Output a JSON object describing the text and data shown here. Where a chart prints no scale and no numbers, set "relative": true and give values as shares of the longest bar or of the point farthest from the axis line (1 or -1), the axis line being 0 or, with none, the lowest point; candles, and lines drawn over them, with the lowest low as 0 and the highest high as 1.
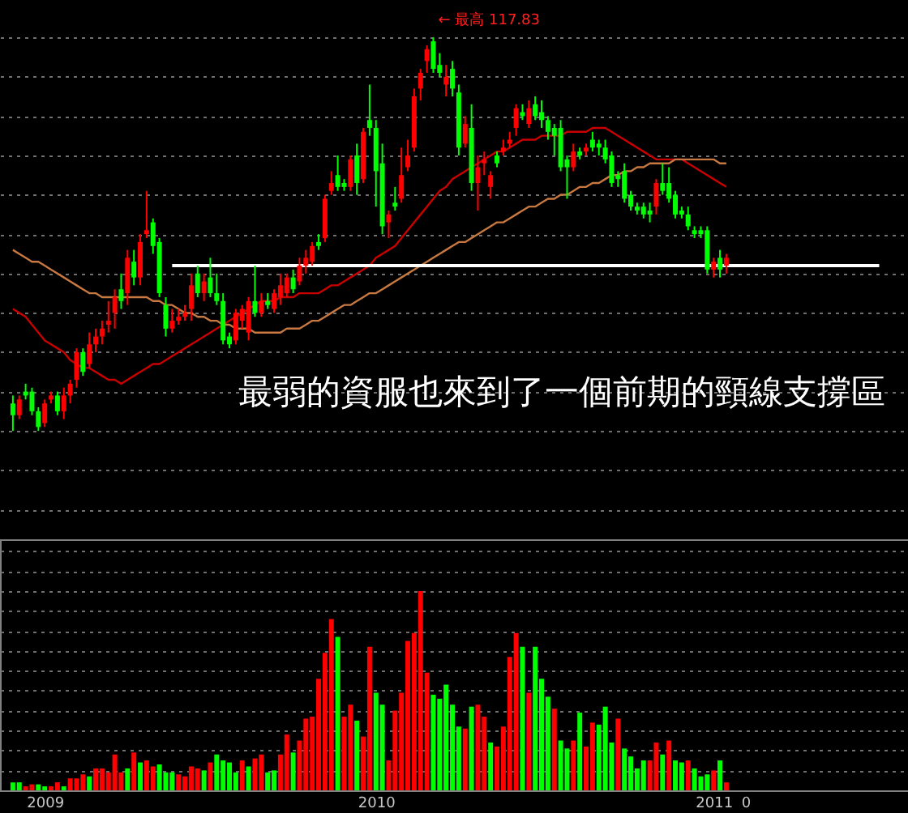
{
  "chart_data": [
    {
      "type": "candlestick",
      "relative": true,
      "grid": "y",
      "tick_labels": false,
      "categories": [
        null,
        null,
        null,
        null,
        null,
        "2009",
        null,
        null,
        null,
        null,
        null,
        null,
        null,
        null,
        null,
        null,
        null,
        null,
        null,
        null,
        null,
        null,
        null,
        null,
        null,
        null,
        null,
        null,
        null,
        null,
        null,
        null,
        null,
        null,
        null,
        null,
        null,
        null,
        null,
        null,
        null,
        null,
        null,
        null,
        null,
        null,
        null,
        null,
        null,
        null,
        null,
        null,
        null,
        null,
        null,
        null,
        null,
        "2010",
        null,
        null,
        null,
        null,
        null,
        null,
        null,
        null,
        null,
        null,
        null,
        null,
        null,
        null,
        null,
        null,
        null,
        null,
        null,
        null,
        null,
        null,
        null,
        null,
        null,
        null,
        null,
        null,
        null,
        null,
        null,
        null,
        null,
        null,
        null,
        null,
        null,
        null,
        null,
        null,
        null,
        null,
        null,
        null,
        null,
        null,
        null,
        null,
        null,
        null,
        null,
        null,
        "2011",
        null,
        null,
        null,
        null,
        "0",
        null,
        null,
        null,
        null,
        null,
        null,
        null,
        null,
        null,
        null,
        null,
        null,
        null,
        null,
        null,
        null,
        null,
        null,
        null,
        null,
        null
      ],
      "ohlc": [
        [
          0.07,
          0.09,
          0,
          0.04
        ],
        [
          0.04,
          0.09,
          0.03,
          0.08
        ],
        [
          0.1,
          0.12,
          0.08,
          0.09
        ],
        [
          0.1,
          0.11,
          0.04,
          0.05
        ],
        [
          0.05,
          0.06,
          0,
          0.01
        ],
        [
          0.02,
          0.08,
          0.01,
          0.07
        ],
        [
          0.08,
          0.1,
          0.07,
          0.09
        ],
        [
          0.09,
          0.1,
          0.04,
          0.05
        ],
        [
          0.05,
          0.11,
          0.03,
          0.09
        ],
        [
          0.09,
          0.13,
          0.07,
          0.12
        ],
        [
          0.13,
          0.21,
          0.11,
          0.2
        ],
        [
          0.2,
          0.21,
          0.14,
          0.15
        ],
        [
          0.17,
          0.25,
          0.16,
          0.22
        ],
        [
          0.22,
          0.26,
          0.2,
          0.24
        ],
        [
          0.24,
          0.28,
          0.22,
          0.26
        ],
        [
          0.27,
          0.33,
          0.25,
          0.28
        ],
        [
          0.3,
          0.36,
          0.26,
          0.34
        ],
        [
          0.36,
          0.4,
          0.31,
          0.33
        ],
        [
          0.35,
          0.46,
          0.32,
          0.44
        ],
        [
          0.43,
          0.46,
          0.37,
          0.39
        ],
        [
          0.39,
          0.5,
          0.37,
          0.48
        ],
        [
          0.5,
          0.61,
          0.49,
          0.51
        ],
        [
          0.53,
          0.54,
          0.45,
          0.47
        ],
        [
          0.48,
          0.49,
          0.34,
          0.35
        ],
        [
          0.32,
          0.34,
          0.24,
          0.26
        ],
        [
          0.26,
          0.31,
          0.25,
          0.28
        ],
        [
          0.28,
          0.31,
          0.27,
          0.29
        ],
        [
          0.29,
          0.32,
          0.28,
          0.3
        ],
        [
          0.31,
          0.4,
          0.28,
          0.37
        ],
        [
          0.4,
          0.42,
          0.34,
          0.35
        ],
        [
          0.35,
          0.4,
          0.33,
          0.38
        ],
        [
          0.39,
          0.44,
          0.34,
          0.35
        ],
        [
          0.35,
          0.4,
          0.32,
          0.33
        ],
        [
          0.33,
          0.35,
          0.22,
          0.23
        ],
        [
          0.24,
          0.25,
          0.21,
          0.22
        ],
        [
          0.23,
          0.31,
          0.22,
          0.3
        ],
        [
          0.28,
          0.32,
          0.26,
          0.31
        ],
        [
          0.25,
          0.34,
          0.23,
          0.33
        ],
        [
          0.33,
          0.42,
          0.29,
          0.3
        ],
        [
          0.3,
          0.35,
          0.29,
          0.33
        ],
        [
          0.33,
          0.35,
          0.31,
          0.32
        ],
        [
          0.31,
          0.36,
          0.3,
          0.35
        ],
        [
          0.34,
          0.4,
          0.32,
          0.37
        ],
        [
          0.35,
          0.4,
          0.34,
          0.39
        ],
        [
          0.39,
          0.41,
          0.35,
          0.36
        ],
        [
          0.38,
          0.44,
          0.37,
          0.42
        ],
        [
          0.42,
          0.46,
          0.4,
          0.44
        ],
        [
          0.43,
          0.48,
          0.42,
          0.47
        ],
        [
          0.48,
          0.5,
          0.46,
          0.47
        ],
        [
          0.49,
          0.6,
          0.48,
          0.59
        ],
        [
          0.61,
          0.66,
          0.6,
          0.63
        ],
        [
          0.65,
          0.7,
          0.61,
          0.62
        ],
        [
          0.63,
          0.64,
          0.61,
          0.62
        ],
        [
          0.62,
          0.7,
          0.61,
          0.69
        ],
        [
          0.7,
          0.73,
          0.6,
          0.63
        ],
        [
          0.64,
          0.77,
          0.63,
          0.76
        ],
        [
          0.79,
          0.88,
          0.75,
          0.77
        ],
        [
          0.77,
          0.79,
          0.57,
          0.66
        ],
        [
          0.68,
          0.73,
          0.5,
          0.52
        ],
        [
          0.53,
          0.56,
          0.49,
          0.55
        ],
        [
          0.58,
          0.62,
          0.56,
          0.57
        ],
        [
          0.59,
          0.72,
          0.58,
          0.65
        ],
        [
          0.67,
          0.74,
          0.66,
          0.7
        ],
        [
          0.72,
          0.87,
          0.71,
          0.85
        ],
        [
          0.87,
          0.92,
          0.84,
          0.91
        ],
        [
          0.94,
          0.98,
          0.91,
          0.97
        ],
        [
          0.99,
          1,
          0.91,
          0.92
        ],
        [
          0.93,
          0.96,
          0.9,
          0.91
        ],
        [
          0.88,
          0.93,
          0.85,
          0.9
        ],
        [
          0.92,
          0.94,
          0.85,
          0.87
        ],
        [
          0.86,
          0.88,
          0.7,
          0.72
        ],
        [
          0.73,
          0.8,
          0.72,
          0.78
        ],
        [
          0.77,
          0.83,
          0.61,
          0.63
        ],
        [
          0.63,
          0.7,
          0.56,
          0.67
        ],
        [
          0.68,
          0.71,
          0.65,
          0.69
        ],
        [
          0.62,
          0.66,
          0.59,
          0.65
        ],
        [
          0.7,
          0.71,
          0.67,
          0.68
        ],
        [
          0.71,
          0.74,
          0.7,
          0.72
        ],
        [
          0.73,
          0.76,
          0.72,
          0.74
        ],
        [
          0.77,
          0.83,
          0.75,
          0.82
        ],
        [
          0.81,
          0.83,
          0.79,
          0.8
        ],
        [
          0.78,
          0.84,
          0.77,
          0.82
        ],
        [
          0.83,
          0.85,
          0.79,
          0.8
        ],
        [
          0.81,
          0.84,
          0.77,
          0.79
        ],
        [
          0.79,
          0.8,
          0.74,
          0.76
        ],
        [
          0.77,
          0.78,
          0.7,
          0.75
        ],
        [
          0.77,
          0.79,
          0.66,
          0.67
        ],
        [
          0.69,
          0.7,
          0.59,
          0.67
        ],
        [
          0.67,
          0.73,
          0.66,
          0.71
        ],
        [
          0.71,
          0.72,
          0.69,
          0.7
        ],
        [
          0.71,
          0.73,
          0.7,
          0.72
        ],
        [
          0.74,
          0.76,
          0.71,
          0.72
        ],
        [
          0.73,
          0.74,
          0.7,
          0.72
        ],
        [
          0.72,
          0.74,
          0.68,
          0.69
        ],
        [
          0.7,
          0.71,
          0.62,
          0.63
        ],
        [
          0.65,
          0.66,
          0.62,
          0.64
        ],
        [
          0.66,
          0.68,
          0.58,
          0.59
        ],
        [
          0.6,
          0.61,
          0.56,
          0.57
        ],
        [
          0.57,
          0.58,
          0.55,
          0.56
        ],
        [
          0.57,
          0.58,
          0.54,
          0.55
        ],
        [
          0.56,
          0.58,
          0.53,
          0.55
        ],
        [
          0.57,
          0.64,
          0.55,
          0.63
        ],
        [
          0.63,
          0.68,
          0.6,
          0.61
        ],
        [
          0.63,
          0.67,
          0.58,
          0.59
        ],
        [
          0.6,
          0.61,
          0.54,
          0.55
        ],
        [
          0.56,
          0.57,
          0.54,
          0.55
        ],
        [
          0.55,
          0.57,
          0.51,
          0.52
        ],
        [
          0.51,
          0.52,
          0.49,
          0.5
        ],
        [
          0.51,
          0.52,
          0.49,
          0.5
        ],
        [
          0.51,
          0.52,
          0.4,
          0.41
        ],
        [
          0.41,
          0.44,
          0.39,
          0.43
        ],
        [
          0.44,
          0.46,
          0.39,
          0.41
        ],
        [
          0.42,
          0.45,
          0.4,
          0.44
        ],
        null,
        null,
        null,
        null,
        null,
        null,
        null,
        null,
        null,
        null,
        null,
        null,
        null,
        null,
        null,
        null,
        null,
        null,
        null,
        null,
        null,
        null,
        null,
        null
      ],
      "colors": [
        "#00ff00",
        "#ff0000",
        "#00ff00",
        "#00ff00",
        "#00ff00",
        "#ff0000",
        "#ff0000",
        "#00ff00",
        "#ff0000",
        "#ff0000",
        "#ff0000",
        "#00ff00",
        "#ff0000",
        "#ff0000",
        "#ff0000",
        "#ff0000",
        "#ff0000",
        "#00ff00",
        "#ff0000",
        "#00ff00",
        "#ff0000",
        "#ff0000",
        "#00ff00",
        "#00ff00",
        "#00ff00",
        "#ff0000",
        "#ff0000",
        "#ff0000",
        "#ff0000",
        "#00ff00",
        "#ff0000",
        "#00ff00",
        "#00ff00",
        "#00ff00",
        "#00ff00",
        "#ff0000",
        "#ff0000",
        "#ff0000",
        "#00ff00",
        "#ff0000",
        "#00ff00",
        "#ff0000",
        "#ff0000",
        "#ff0000",
        "#00ff00",
        "#ff0000",
        "#ff0000",
        "#ff0000",
        "#00ff00",
        "#ff0000",
        "#ff0000",
        "#00ff00",
        "#00ff00",
        "#ff0000",
        "#00ff00",
        "#ff0000",
        "#00ff00",
        "#00ff00",
        "#00ff00",
        "#ff0000",
        "#00ff00",
        "#ff0000",
        "#ff0000",
        "#ff0000",
        "#ff0000",
        "#ff0000",
        "#00ff00",
        "#00ff00",
        "#ff0000",
        "#00ff00",
        "#00ff00",
        "#ff0000",
        "#00ff00",
        "#ff0000",
        "#ff0000",
        "#ff0000",
        "#00ff00",
        "#ff0000",
        "#ff0000",
        "#ff0000",
        "#00ff00",
        "#ff0000",
        "#00ff00",
        "#00ff00",
        "#00ff00",
        "#00ff00",
        "#00ff00",
        "#00ff00",
        "#ff0000",
        "#00ff00",
        "#ff0000",
        "#00ff00",
        "#00ff00",
        "#00ff00",
        "#00ff00",
        "#00ff00",
        "#00ff00",
        "#00ff00",
        "#00ff00",
        "#00ff00",
        "#00ff00",
        "#ff0000",
        "#00ff00",
        "#00ff00",
        "#00ff00",
        "#00ff00",
        "#00ff00",
        "#00ff00",
        "#00ff00",
        "#00ff00",
        "#ff0000",
        "#00ff00",
        "#ff0000",
        null,
        null,
        null,
        null,
        null,
        null,
        null,
        null,
        null,
        null,
        null,
        null,
        null,
        null,
        null,
        null,
        null,
        null,
        null,
        null,
        null,
        null,
        null,
        null
      ],
      "series": [
        {
          "type": "line",
          "color": "#c80000",
          "values": [
            0.31,
            0.3,
            0.29,
            0.27,
            0.25,
            0.23,
            0.22,
            0.21,
            0.2,
            0.18,
            0.17,
            0.16,
            0.16,
            0.15,
            0.14,
            0.13,
            0.13,
            0.12,
            0.13,
            0.14,
            0.15,
            0.16,
            0.17,
            0.17,
            0.18,
            0.19,
            0.2,
            0.21,
            0.22,
            0.23,
            0.24,
            0.25,
            0.26,
            0.27,
            0.28,
            0.29,
            0.3,
            0.31,
            0.32,
            0.33,
            0.33,
            0.33,
            0.34,
            0.34,
            0.34,
            0.35,
            0.35,
            0.35,
            0.35,
            0.36,
            0.37,
            0.37,
            0.38,
            0.39,
            0.4,
            0.41,
            0.42,
            0.44,
            0.45,
            0.46,
            0.47,
            0.49,
            0.51,
            0.53,
            0.55,
            0.57,
            0.59,
            0.61,
            0.62,
            0.64,
            0.65,
            0.66,
            0.67,
            0.68,
            0.69,
            0.7,
            0.71,
            0.71,
            0.72,
            0.73,
            0.74,
            0.74,
            0.74,
            0.75,
            0.75,
            0.75,
            0.75,
            0.76,
            0.76,
            0.76,
            0.76,
            0.77,
            0.77,
            0.77,
            0.76,
            0.75,
            0.74,
            0.73,
            0.72,
            0.71,
            0.7,
            0.69,
            0.69,
            0.69,
            0.69,
            0.69,
            0.68,
            0.67,
            0.66,
            0.65,
            0.64,
            0.63,
            0.62,
            null,
            null,
            null,
            null,
            null,
            null,
            null,
            null,
            null,
            null,
            null,
            null,
            null,
            null,
            null,
            null,
            null,
            null,
            null,
            null,
            null,
            null,
            null,
            null
          ]
        },
        {
          "type": "line",
          "color": "#c87841",
          "values": [
            0.46,
            0.45,
            0.44,
            0.43,
            0.43,
            0.42,
            0.41,
            0.4,
            0.39,
            0.38,
            0.37,
            0.36,
            0.35,
            0.35,
            0.34,
            0.34,
            0.34,
            0.34,
            0.34,
            0.34,
            0.34,
            0.34,
            0.33,
            0.33,
            0.32,
            0.32,
            0.31,
            0.3,
            0.3,
            0.29,
            0.29,
            0.28,
            0.28,
            0.27,
            0.27,
            0.26,
            0.26,
            0.26,
            0.25,
            0.25,
            0.25,
            0.25,
            0.25,
            0.26,
            0.26,
            0.26,
            0.27,
            0.28,
            0.28,
            0.29,
            0.3,
            0.31,
            0.32,
            0.32,
            0.33,
            0.34,
            0.35,
            0.35,
            0.36,
            0.37,
            0.38,
            0.39,
            0.4,
            0.41,
            0.42,
            0.43,
            0.44,
            0.45,
            0.46,
            0.47,
            0.48,
            0.48,
            0.49,
            0.5,
            0.51,
            0.52,
            0.53,
            0.53,
            0.54,
            0.55,
            0.56,
            0.57,
            0.57,
            0.58,
            0.59,
            0.59,
            0.6,
            0.6,
            0.61,
            0.62,
            0.62,
            0.63,
            0.63,
            0.64,
            0.65,
            0.65,
            0.66,
            0.66,
            0.67,
            0.67,
            0.68,
            0.68,
            0.68,
            0.68,
            0.69,
            0.69,
            0.69,
            0.69,
            0.69,
            0.69,
            0.69,
            0.68,
            0.68,
            null,
            null,
            null,
            null,
            null,
            null,
            null,
            null,
            null,
            null,
            null,
            null,
            null,
            null,
            null,
            null,
            null,
            null,
            null,
            null,
            null,
            null,
            null,
            null
          ]
        },
        {
          "type": "line",
          "color": "#ffffff",
          "values": [
            null,
            null,
            null,
            null,
            null,
            null,
            null,
            null,
            null,
            null,
            null,
            null,
            null,
            null,
            null,
            null,
            null,
            null,
            null,
            null,
            null,
            null,
            null,
            null,
            null,
            0.42,
            null,
            null,
            null,
            null,
            null,
            null,
            null,
            null,
            null,
            null,
            null,
            null,
            null,
            null,
            null,
            null,
            null,
            null,
            null,
            null,
            null,
            null,
            null,
            null,
            null,
            null,
            null,
            null,
            null,
            null,
            null,
            null,
            null,
            null,
            null,
            null,
            null,
            null,
            null,
            null,
            null,
            null,
            null,
            null,
            null,
            null,
            null,
            null,
            null,
            null,
            null,
            null,
            null,
            null,
            null,
            null,
            null,
            null,
            null,
            null,
            null,
            null,
            null,
            null,
            null,
            null,
            null,
            null,
            null,
            null,
            null,
            null,
            null,
            null,
            null,
            null,
            null,
            null,
            null,
            null,
            null,
            null,
            null,
            null,
            null,
            null,
            null,
            null,
            null,
            null,
            null,
            null,
            null,
            null,
            null,
            null,
            null,
            null,
            null,
            null,
            null,
            null,
            null,
            null,
            null,
            null,
            null,
            null,
            null,
            null,
            0.42
          ]
        }
      ],
      "annotations": [
        "← 最高 117.83",
        "最弱的資服也來到了一個前期的頸線支撐區"
      ]
    },
    {
      "type": "bar",
      "relative": true,
      "grid": "y",
      "tick_labels": "x",
      "categories": [
        null,
        null,
        null,
        null,
        null,
        "2009",
        null,
        null,
        null,
        null,
        null,
        null,
        null,
        null,
        null,
        null,
        null,
        null,
        null,
        null,
        null,
        null,
        null,
        null,
        null,
        null,
        null,
        null,
        null,
        null,
        null,
        null,
        null,
        null,
        null,
        null,
        null,
        null,
        null,
        null,
        null,
        null,
        null,
        null,
        null,
        null,
        null,
        null,
        null,
        null,
        null,
        null,
        null,
        null,
        null,
        null,
        null,
        "2010",
        null,
        null,
        null,
        null,
        null,
        null,
        null,
        null,
        null,
        null,
        null,
        null,
        null,
        null,
        null,
        null,
        null,
        null,
        null,
        null,
        null,
        null,
        null,
        null,
        null,
        null,
        null,
        null,
        null,
        null,
        null,
        null,
        null,
        null,
        null,
        null,
        null,
        null,
        null,
        null,
        null,
        null,
        null,
        null,
        null,
        null,
        null,
        null,
        null,
        null,
        null,
        null,
        "2011",
        null,
        null,
        null,
        null,
        "0",
        null,
        null,
        null,
        null,
        null,
        null,
        null,
        null,
        null,
        null,
        null,
        null,
        null,
        null,
        null,
        null,
        null,
        null,
        null,
        null,
        null
      ],
      "values": [
        0.04,
        0.04,
        0.02,
        0.03,
        0.03,
        0.02,
        0.02,
        0.04,
        0.02,
        0.06,
        0.06,
        0.08,
        0.07,
        0.11,
        0.11,
        0.09,
        0.18,
        0.09,
        0.11,
        0.19,
        0.14,
        0.15,
        0.12,
        0.13,
        0.09,
        0.09,
        0.08,
        0.07,
        0.12,
        0.11,
        0.1,
        0.14,
        0.18,
        0.15,
        0.14,
        0.09,
        0.15,
        0.12,
        0.16,
        0.18,
        0.09,
        0.1,
        0.18,
        0.28,
        0.19,
        0.25,
        0.36,
        0.37,
        0.56,
        0.69,
        0.86,
        0.77,
        0.37,
        0.43,
        0.35,
        0.27,
        0.72,
        0.49,
        0.43,
        0.15,
        0.4,
        0.49,
        0.75,
        0.79,
        1,
        0.59,
        0.48,
        0.46,
        0.53,
        0.43,
        0.32,
        0.31,
        0.42,
        0.43,
        0.37,
        0.24,
        0.22,
        0.32,
        0.67,
        0.79,
        0.72,
        0.49,
        0.72,
        0.56,
        0.47,
        0.41,
        0.25,
        0.21,
        0.25,
        0.39,
        0.22,
        0.34,
        0.33,
        0.42,
        0.24,
        0.36,
        0.21,
        0.17,
        0.11,
        0.15,
        0.15,
        0.24,
        0.18,
        0.25,
        0.15,
        0.14,
        0.15,
        0.11,
        0.07,
        0.08,
        0.1,
        0.15,
        0.04,
        null,
        null,
        null,
        null,
        null,
        null,
        null,
        null,
        null,
        null,
        null,
        null,
        null,
        null,
        null,
        null,
        null,
        null,
        null,
        null,
        null,
        null,
        null,
        null
      ],
      "colors": [
        "#00ff00",
        "#00ff00",
        "#ff0000",
        "#ff0000",
        "#00ff00",
        "#00ff00",
        "#ff0000",
        "#ff0000",
        "#00ff00",
        "#ff0000",
        "#ff0000",
        "#ff0000",
        "#00ff00",
        "#ff0000",
        "#ff0000",
        "#ff0000",
        "#ff0000",
        "#ff0000",
        "#00ff00",
        "#ff0000",
        "#00ff00",
        "#ff0000",
        "#ff0000",
        "#00ff00",
        "#00ff00",
        "#00ff00",
        "#ff0000",
        "#ff0000",
        "#ff0000",
        "#ff0000",
        "#00ff00",
        "#ff0000",
        "#00ff00",
        "#00ff00",
        "#00ff00",
        "#00ff00",
        "#ff0000",
        "#00ff00",
        "#ff0000",
        "#ff0000",
        "#00ff00",
        "#00ff00",
        "#ff0000",
        "#ff0000",
        "#00ff00",
        "#ff0000",
        "#ff0000",
        "#ff0000",
        "#ff0000",
        "#ff0000",
        "#ff0000",
        "#00ff00",
        "#ff0000",
        "#ff0000",
        "#00ff00",
        "#ff0000",
        "#ff0000",
        "#00ff00",
        "#00ff00",
        "#ff0000",
        "#ff0000",
        "#ff0000",
        "#ff0000",
        "#ff0000",
        "#ff0000",
        "#ff0000",
        "#00ff00",
        "#00ff00",
        "#00ff00",
        "#00ff00",
        "#00ff00",
        "#ff0000",
        "#00ff00",
        "#ff0000",
        "#ff0000",
        "#00ff00",
        "#ff0000",
        "#ff0000",
        "#ff0000",
        "#ff0000",
        "#00ff00",
        "#ff0000",
        "#00ff00",
        "#00ff00",
        "#00ff00",
        "#ff0000",
        "#00ff00",
        "#00ff00",
        "#ff0000",
        "#00ff00",
        "#ff0000",
        "#ff0000",
        "#00ff00",
        "#00ff00",
        "#00ff00",
        "#ff0000",
        "#00ff00",
        "#00ff00",
        "#00ff00",
        "#00ff00",
        "#ff0000",
        "#ff0000",
        "#00ff00",
        "#ff0000",
        "#00ff00",
        "#00ff00",
        "#ff0000",
        "#00ff00",
        "#00ff00",
        "#00ff00",
        "#ff0000",
        "#00ff00",
        "#ff0000",
        null,
        null,
        null,
        null,
        null,
        null,
        null,
        null,
        null,
        null,
        null,
        null,
        null,
        null,
        null,
        null,
        null,
        null,
        null,
        null,
        null,
        null,
        null,
        null
      ]
    }
  ]
}
